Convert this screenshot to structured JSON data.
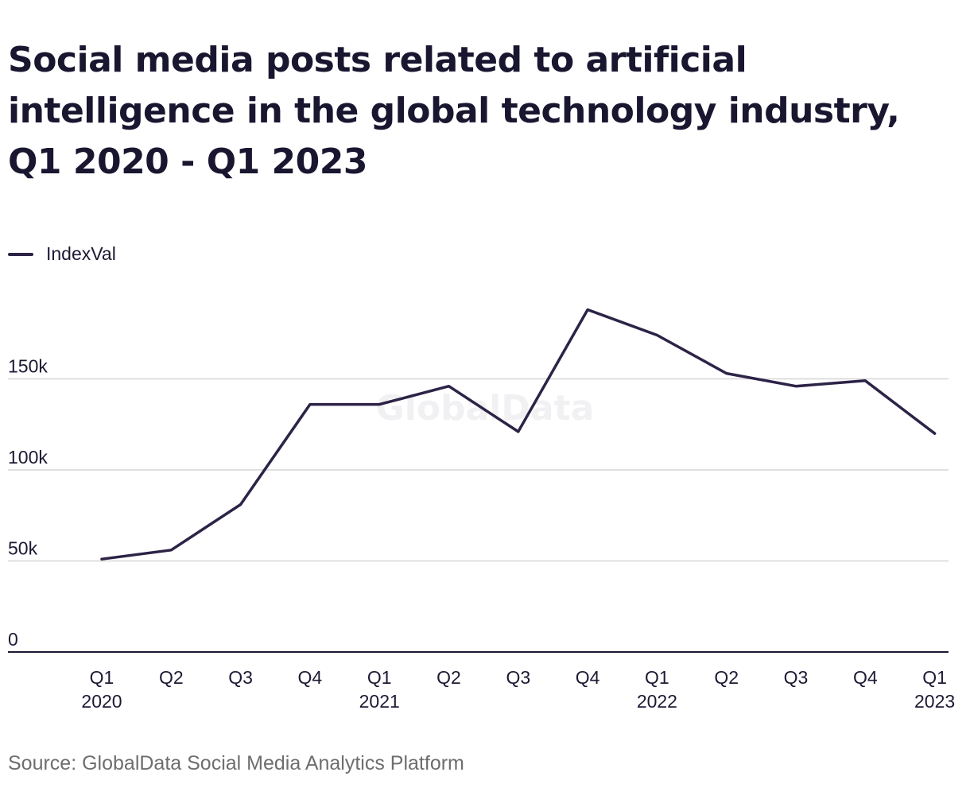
{
  "title": "Social media posts related to artificial intelligence in the global technology industry, Q1 2020 - Q1 2023",
  "source": "Source: GlobalData Social Media Analytics Platform",
  "watermark": "GlobalData",
  "colors": {
    "line": "#2d2347",
    "grid": "#d6d6d6",
    "axis": "#1c1a33",
    "text": "#1c1a33",
    "muted": "#6e6e6e"
  },
  "chart_data": {
    "type": "line",
    "title": "Social media posts related to artificial intelligence in the global technology industry, Q1 2020 - Q1 2023",
    "xlabel": "",
    "ylabel": "",
    "ylim": [
      0,
      200000
    ],
    "yticks": [
      {
        "value": 0,
        "label": "0"
      },
      {
        "value": 50000,
        "label": "50k"
      },
      {
        "value": 100000,
        "label": "100k"
      },
      {
        "value": 150000,
        "label": "150k"
      }
    ],
    "grid": true,
    "legend": "top-left",
    "categories": [
      [
        "Q1",
        "2020"
      ],
      [
        "Q2",
        ""
      ],
      [
        "Q3",
        ""
      ],
      [
        "Q4",
        ""
      ],
      [
        "Q1",
        "2021"
      ],
      [
        "Q2",
        ""
      ],
      [
        "Q3",
        ""
      ],
      [
        "Q4",
        ""
      ],
      [
        "Q1",
        "2022"
      ],
      [
        "Q2",
        ""
      ],
      [
        "Q3",
        ""
      ],
      [
        "Q4",
        ""
      ],
      [
        "Q1",
        "2023"
      ]
    ],
    "series": [
      {
        "name": "IndexVal",
        "values": [
          51000,
          56000,
          81000,
          136000,
          136000,
          146000,
          121000,
          188000,
          174000,
          153000,
          146000,
          149000,
          120000
        ]
      }
    ]
  }
}
